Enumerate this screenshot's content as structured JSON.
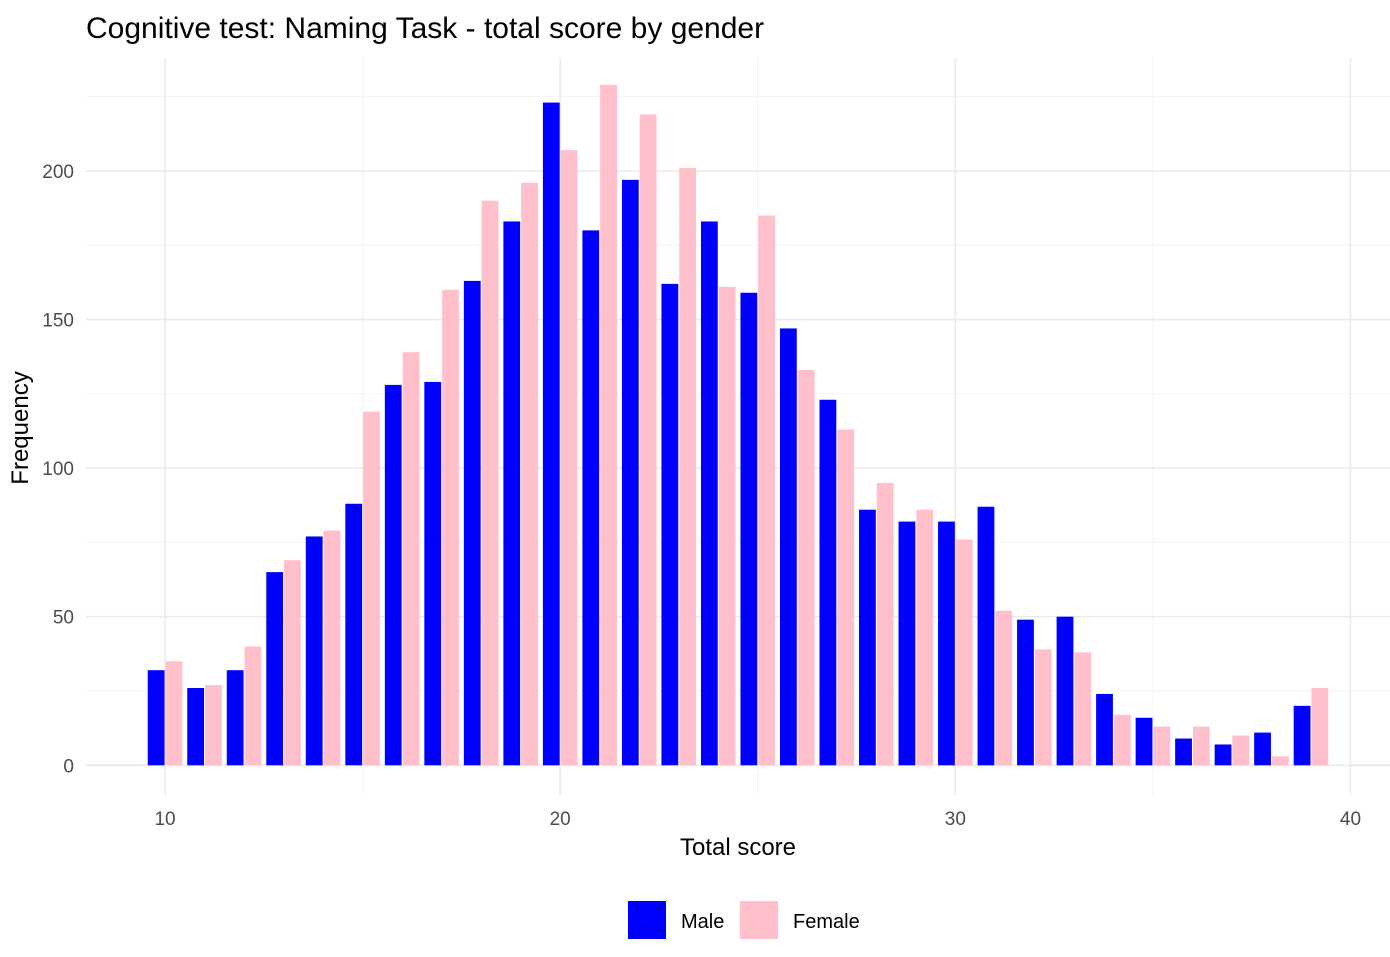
{
  "chart_data": {
    "type": "bar",
    "title": "Cognitive test: Naming Task - total score by gender",
    "xlabel": "Total score",
    "ylabel": "Frequency",
    "xlim": [
      8,
      41
    ],
    "ylim": [
      -10,
      238
    ],
    "x_ticks": [
      10,
      20,
      30,
      40
    ],
    "y_ticks": [
      0,
      50,
      100,
      150,
      200
    ],
    "grid": true,
    "legend_position": "bottom",
    "x": [
      10,
      11,
      12,
      13,
      14,
      15,
      16,
      17,
      18,
      19,
      20,
      21,
      22,
      23,
      24,
      25,
      26,
      27,
      28,
      29,
      30,
      31,
      32,
      33,
      34,
      35,
      36,
      37,
      38,
      39
    ],
    "series": [
      {
        "name": "Male",
        "color": "#0000ff",
        "values": [
          32,
          26,
          32,
          65,
          77,
          88,
          128,
          129,
          163,
          183,
          223,
          180,
          197,
          162,
          183,
          159,
          147,
          123,
          86,
          82,
          82,
          87,
          49,
          50,
          24,
          16,
          9,
          7,
          11,
          20
        ]
      },
      {
        "name": "Female",
        "color": "#ffc0cb",
        "values": [
          35,
          27,
          40,
          69,
          79,
          119,
          139,
          160,
          190,
          196,
          207,
          229,
          219,
          201,
          161,
          185,
          133,
          113,
          95,
          86,
          76,
          52,
          39,
          38,
          17,
          13,
          13,
          10,
          3,
          26
        ]
      }
    ]
  }
}
